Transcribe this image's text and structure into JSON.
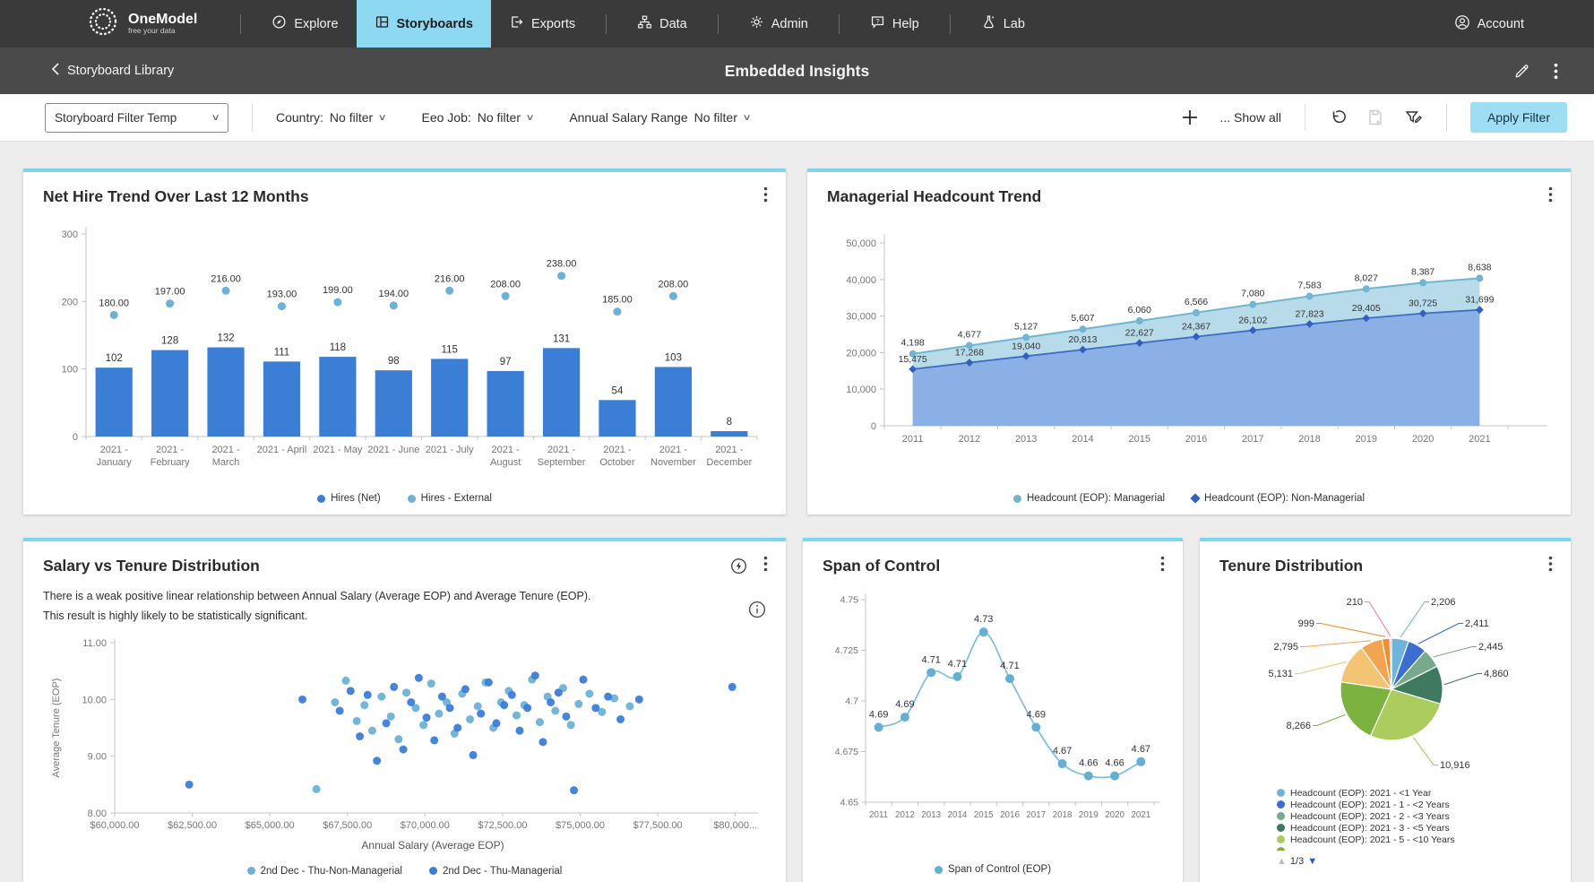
{
  "topnav": {
    "logo_title": "OneModel",
    "logo_tagline": "free your data",
    "items": [
      {
        "label": "Explore",
        "icon": "compass-icon",
        "active": false
      },
      {
        "label": "Storyboards",
        "icon": "storyboard-icon",
        "active": true
      },
      {
        "label": "Exports",
        "icon": "export-icon",
        "active": false
      },
      {
        "label": "Data",
        "icon": "org-chart-icon",
        "active": false
      },
      {
        "label": "Admin",
        "icon": "gear-icon",
        "active": false
      },
      {
        "label": "Help",
        "icon": "help-bubble-icon",
        "active": false
      },
      {
        "label": "Lab",
        "icon": "flask-icon",
        "active": false
      }
    ],
    "account_label": "Account"
  },
  "subheader": {
    "back_label": "Storyboard Library",
    "title": "Embedded Insights"
  },
  "filterbar": {
    "template_selector_value": "Storyboard Filter Temp",
    "filters": [
      {
        "label": "Country:",
        "value": "No filter"
      },
      {
        "label": "Eeo Job:",
        "value": "No filter"
      },
      {
        "label": "Annual Salary Range",
        "value": "No filter"
      }
    ],
    "show_all_label": "... Show all",
    "apply_label": "Apply Filter"
  },
  "chart_data": [
    {
      "id": "net_hire_trend",
      "type": "bar",
      "title": "Net Hire Trend Over Last 12 Months",
      "categories": [
        "2021 - January",
        "2021 - February",
        "2021 - March",
        "2021 - April",
        "2021 - May",
        "2021 - June",
        "2021 - July",
        "2021 - August",
        "2021 - September",
        "2021 - October",
        "2021 - November",
        "2021 - December"
      ],
      "ylim": [
        0,
        300
      ],
      "yticks": [
        "0",
        "100",
        "200",
        "300"
      ],
      "series": [
        {
          "name": "Hires (Net)",
          "type": "bar",
          "color": "#3a7ed6",
          "values": [
            102,
            128,
            132,
            111,
            118,
            98,
            115,
            97,
            131,
            54,
            103,
            8
          ]
        },
        {
          "name": "Hires - External",
          "type": "point",
          "color": "#6cb2d6",
          "values": [
            180,
            197,
            216,
            193,
            199,
            194,
            216,
            208,
            238,
            185,
            208,
            null
          ]
        }
      ]
    },
    {
      "id": "managerial_headcount_trend",
      "type": "area",
      "title": "Managerial Headcount Trend",
      "x": [
        2011,
        2012,
        2013,
        2014,
        2015,
        2016,
        2017,
        2018,
        2019,
        2020,
        2021
      ],
      "stacked": true,
      "ylim": [
        0,
        50000
      ],
      "yticks": [
        "0",
        "10,000",
        "20,000",
        "30,000",
        "40,000",
        "50,000"
      ],
      "series": [
        {
          "name": "Headcount (EOP): Managerial",
          "marker": "circle",
          "color": "#72b5d3",
          "fill": "#b7dbe9",
          "values": [
            4198,
            4677,
            5127,
            5607,
            6060,
            6566,
            7080,
            7583,
            8027,
            8387,
            8638
          ]
        },
        {
          "name": "Headcount (EOP): Non-Managerial",
          "marker": "diamond",
          "color": "#3f6cc4",
          "fill": "#8bb0e6",
          "values": [
            15475,
            17268,
            19040,
            20813,
            22627,
            24367,
            26102,
            27823,
            29405,
            30725,
            31699
          ]
        }
      ]
    },
    {
      "id": "salary_vs_tenure",
      "type": "scatter",
      "title": "Salary vs Tenure Distribution",
      "insight_lines": [
        "There is a weak positive linear relationship between Annual Salary (Average EOP) and Average Tenure (EOP).",
        "This result is highly likely to be statistically significant."
      ],
      "xlabel": "Annual Salary (Average EOP)",
      "ylabel": "Average Tenure (EOP)",
      "xlim": [
        60000,
        80500
      ],
      "xtick_values": [
        60000,
        62500,
        65000,
        67500,
        70000,
        72500,
        75000,
        77500,
        80000
      ],
      "xticks": [
        "$60,000.00",
        "$62,500.00",
        "$65,000.00",
        "$67,500.00",
        "$70,000.00",
        "$72,500.00",
        "$75,000.00",
        "$77,500.00",
        "$80,000..."
      ],
      "ylim": [
        8,
        11
      ],
      "ytick_values": [
        8,
        9,
        10,
        11
      ],
      "yticks": [
        "8.00",
        "9.00",
        "10.00",
        "11.00"
      ],
      "series": [
        {
          "name": "2nd Dec - Thu-Non-Managerial",
          "color": "#6cb2d6",
          "points": [
            [
              66500,
              8.42
            ],
            [
              67100,
              9.95
            ],
            [
              67450,
              10.33
            ],
            [
              67800,
              9.62
            ],
            [
              68050,
              9.9
            ],
            [
              68300,
              9.45
            ],
            [
              68600,
              10.05
            ],
            [
              68900,
              9.7
            ],
            [
              69150,
              9.3
            ],
            [
              69400,
              10.12
            ],
            [
              69700,
              9.85
            ],
            [
              69950,
              9.55
            ],
            [
              70200,
              10.28
            ],
            [
              70450,
              9.75
            ],
            [
              70700,
              9.95
            ],
            [
              70950,
              9.4
            ],
            [
              71200,
              10.1
            ],
            [
              71450,
              9.65
            ],
            [
              71700,
              9.88
            ],
            [
              71950,
              10.3
            ],
            [
              72200,
              9.5
            ],
            [
              72450,
              9.95
            ],
            [
              72700,
              10.15
            ],
            [
              72950,
              9.72
            ],
            [
              73200,
              9.9
            ],
            [
              73450,
              10.35
            ],
            [
              73700,
              9.6
            ],
            [
              73950,
              10.05
            ],
            [
              74200,
              9.8
            ],
            [
              74450,
              10.2
            ],
            [
              74700,
              9.55
            ],
            [
              74950,
              9.92
            ],
            [
              75300,
              10.1
            ],
            [
              75700,
              9.78
            ],
            [
              76100,
              10.02
            ],
            [
              76600,
              9.88
            ]
          ]
        },
        {
          "name": "2nd Dec - Thu-Managerial",
          "color": "#3b7dd8",
          "points": [
            [
              62400,
              8.5
            ],
            [
              66050,
              10.0
            ],
            [
              67250,
              9.8
            ],
            [
              67600,
              10.15
            ],
            [
              67900,
              9.35
            ],
            [
              68150,
              10.08
            ],
            [
              68450,
              8.92
            ],
            [
              68750,
              9.58
            ],
            [
              69000,
              10.22
            ],
            [
              69300,
              9.12
            ],
            [
              69550,
              9.95
            ],
            [
              69800,
              10.38
            ],
            [
              70050,
              9.68
            ],
            [
              70300,
              9.28
            ],
            [
              70550,
              10.05
            ],
            [
              70800,
              9.85
            ],
            [
              71050,
              9.5
            ],
            [
              71300,
              10.18
            ],
            [
              71550,
              9.02
            ],
            [
              71800,
              9.75
            ],
            [
              72050,
              10.3
            ],
            [
              72300,
              9.58
            ],
            [
              72550,
              9.9
            ],
            [
              72800,
              10.08
            ],
            [
              73050,
              9.45
            ],
            [
              73300,
              9.85
            ],
            [
              73550,
              10.42
            ],
            [
              73800,
              9.25
            ],
            [
              74050,
              9.95
            ],
            [
              74300,
              10.12
            ],
            [
              74550,
              9.7
            ],
            [
              74800,
              8.4
            ],
            [
              75100,
              10.35
            ],
            [
              75500,
              9.85
            ],
            [
              75900,
              10.05
            ],
            [
              76300,
              9.65
            ],
            [
              76900,
              10.0
            ],
            [
              79900,
              10.22
            ]
          ]
        }
      ]
    },
    {
      "id": "span_of_control",
      "type": "line",
      "title": "Span of Control",
      "x": [
        2011,
        2012,
        2013,
        2014,
        2015,
        2016,
        2017,
        2018,
        2019,
        2020,
        2021
      ],
      "ylim": [
        4.65,
        4.75
      ],
      "yticks": [
        "4.65",
        "4.675",
        "4.7",
        "4.725",
        "4.75"
      ],
      "ytick_values": [
        4.65,
        4.675,
        4.7,
        4.725,
        4.75
      ],
      "series": [
        {
          "name": "Span of Control (EOP)",
          "color": "#7cbedd",
          "marker_color": "#63b0d4",
          "values": [
            4.687,
            4.692,
            4.714,
            4.712,
            4.734,
            4.711,
            4.687,
            4.669,
            4.663,
            4.663,
            4.67
          ],
          "labels": [
            "4.69",
            "4.69",
            "4.71",
            "4.71",
            "4.73",
            "4.71",
            "4.69",
            "4.67",
            "4.66",
            "4.66",
            "4.67"
          ]
        }
      ]
    },
    {
      "id": "tenure_distribution",
      "type": "pie",
      "title": "Tenure Distribution",
      "slices": [
        {
          "value": 2206,
          "label": "2,206",
          "color": "#6fb5d9"
        },
        {
          "value": 2411,
          "label": "2,411",
          "color": "#3a6ed0"
        },
        {
          "value": 2445,
          "label": "2,445",
          "color": "#77aa8b"
        },
        {
          "value": 4860,
          "label": "4,860",
          "color": "#3f7a60"
        },
        {
          "value": 10916,
          "label": "10,916",
          "color": "#aacd5e"
        },
        {
          "value": 8266,
          "label": "8,266",
          "color": "#7cb23f"
        },
        {
          "value": 5131,
          "label": "5,131",
          "color": "#f4c475"
        },
        {
          "value": 2795,
          "label": "2,795",
          "color": "#f2a44f"
        },
        {
          "value": 999,
          "label": "999",
          "color": "#ee8e2d"
        },
        {
          "value": 210,
          "label": "210",
          "color": "#f07fb0"
        }
      ],
      "legend": [
        {
          "label": "Headcount (EOP): 2021 - <1 Year",
          "color": "#6fb5d9"
        },
        {
          "label": "Headcount (EOP): 2021 - 1 - <2 Years",
          "color": "#3a6ed0"
        },
        {
          "label": "Headcount (EOP): 2021 - 2 - <3 Years",
          "color": "#77aa8b"
        },
        {
          "label": "Headcount (EOP): 2021 - 3 - <5 Years",
          "color": "#3f7a60"
        },
        {
          "label": "Headcount (EOP): 2021 - 5 - <10 Years",
          "color": "#aacd5e"
        },
        {
          "label": "",
          "color": "#7cb23f"
        }
      ],
      "pagination": "1/3"
    }
  ]
}
